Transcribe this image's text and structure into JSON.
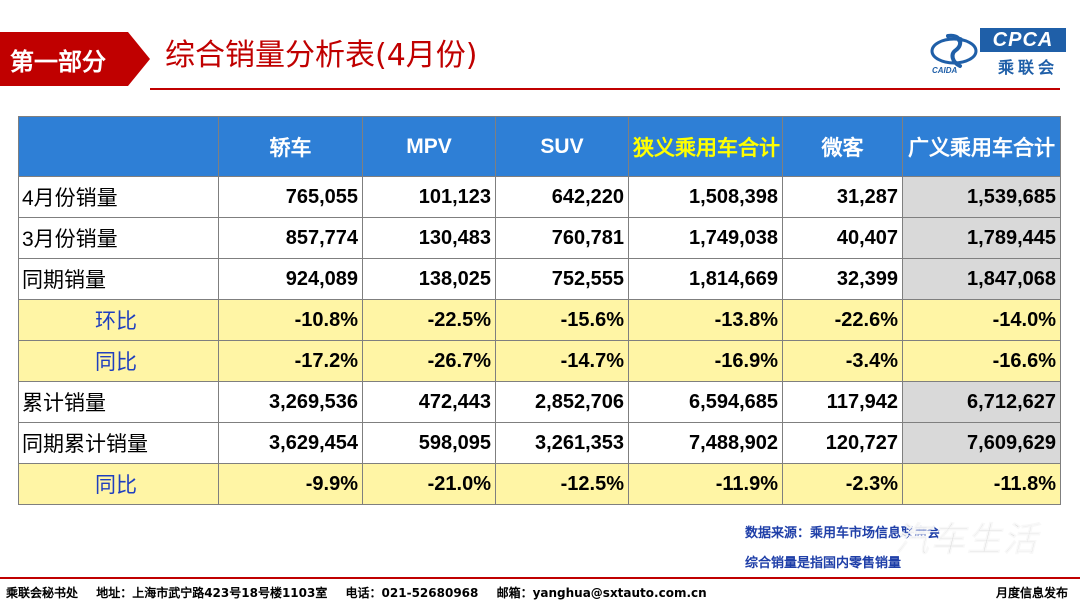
{
  "header": {
    "section_label": "第一部分",
    "title": "综合销量分析表(4月份)",
    "logo_text": "CPCA",
    "logo_cn": "乘联会",
    "logo_sub": "CAIDA"
  },
  "table": {
    "columns": [
      "",
      "轿车",
      "MPV",
      "SUV",
      "狭义乘用车合计",
      "微客",
      "广义乘用车合计"
    ],
    "rows": [
      {
        "label": "4月份销量",
        "values": [
          "765,055",
          "101,123",
          "642,220",
          "1,508,398",
          "31,287",
          "1,539,685"
        ]
      },
      {
        "label": "3月份销量",
        "values": [
          "857,774",
          "130,483",
          "760,781",
          "1,749,038",
          "40,407",
          "1,789,445"
        ]
      },
      {
        "label": "同期销量",
        "values": [
          "924,089",
          "138,025",
          "752,555",
          "1,814,669",
          "32,399",
          "1,847,068"
        ]
      },
      {
        "label": "环比",
        "values": [
          "-10.8%",
          "-22.5%",
          "-15.6%",
          "-13.8%",
          "-22.6%",
          "-14.0%"
        ]
      },
      {
        "label": "同比",
        "values": [
          "-17.2%",
          "-26.7%",
          "-14.7%",
          "-16.9%",
          "-3.4%",
          "-16.6%"
        ]
      },
      {
        "label": "累计销量",
        "values": [
          "3,269,536",
          "472,443",
          "2,852,706",
          "6,594,685",
          "117,942",
          "6,712,627"
        ]
      },
      {
        "label": "同期累计销量",
        "values": [
          "3,629,454",
          "598,095",
          "3,261,353",
          "7,488,902",
          "120,727",
          "7,609,629"
        ]
      },
      {
        "label": "同比",
        "values": [
          "-9.9%",
          "-21.0%",
          "-12.5%",
          "-11.9%",
          "-2.3%",
          "-11.8%"
        ]
      }
    ]
  },
  "notes": {
    "source": "数据来源：乘用车市场信息联席会",
    "definition": "综合销量是指国内零售销量"
  },
  "watermark": "汽车生活",
  "footer": {
    "org": "乘联会秘书处",
    "address": "地址：上海市武宁路423号18号楼1103室",
    "phone": "电话：021-52680968",
    "email": "邮箱：yanghua@sxtauto.com.cn",
    "right": "月度信息发布"
  },
  "colors": {
    "brand_red": "#c00000",
    "header_blue": "#2e7fd6",
    "highlight_yellow": "#fff5a5",
    "total_gray": "#d9d9d9",
    "logo_blue": "#1f5fa8"
  }
}
